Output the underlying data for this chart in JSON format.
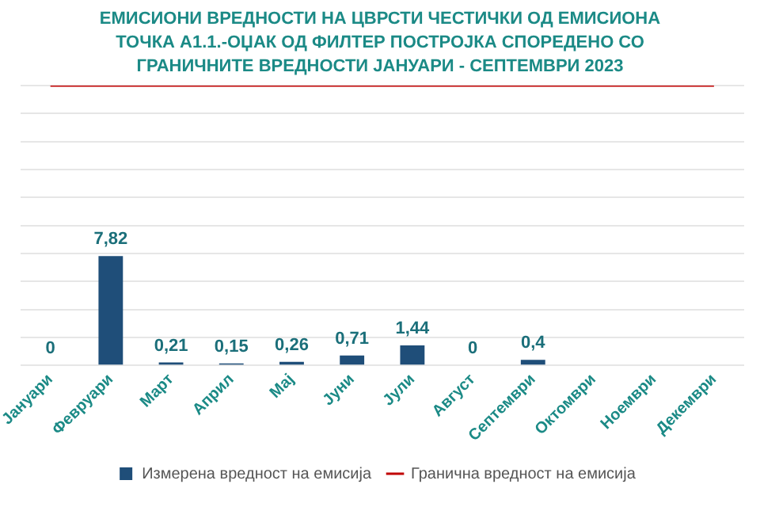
{
  "chart_data": {
    "type": "bar",
    "title": "ЕМИСИОНИ ВРЕДНОСТИ НА ЦВРСТИ ЧЕСТИЧКИ ОД ЕМИСИОНА ТОЧКА А1.1.-ОЏАК ОД ФИЛТЕР ПОСТРОЈКА СПОРЕДЕНО СО ГРАНИЧНИТЕ ВРЕДНОСТИ ЈАНУАРИ - СЕПТЕМВРИ 2023",
    "categories": [
      "Јануари",
      "Февруари",
      "Март",
      "Април",
      "Мај",
      "Јуни",
      "Јули",
      "Август",
      "Септември",
      "Октомври",
      "Ноември",
      "Декември"
    ],
    "series": [
      {
        "name": "Измерена вредност на емисија",
        "color": "#1f4e79",
        "values": [
          0,
          7.82,
          0.21,
          0.15,
          0.26,
          0.71,
          1.44,
          0,
          0.4,
          null,
          null,
          null
        ],
        "value_labels": [
          "0",
          "7,82",
          "0,21",
          "0,15",
          "0,26",
          "0,71",
          "1,44",
          "0",
          "0,4",
          null,
          null,
          null
        ]
      },
      {
        "name": "Гранична вредност на емисија",
        "type": "line",
        "color": "#c00000",
        "marker": "none",
        "values": [
          20,
          20,
          20,
          20,
          20,
          20,
          20,
          20,
          20,
          20,
          20,
          20
        ]
      }
    ],
    "ylim": [
      0,
      20
    ],
    "yticks": [
      {
        "value": 0,
        "label": null
      },
      {
        "value": 2,
        "label": null
      },
      {
        "value": 4,
        "label": null
      },
      {
        "value": 6,
        "label": null
      },
      {
        "value": 8,
        "label": null
      },
      {
        "value": 10,
        "label": null
      },
      {
        "value": 12,
        "label": null
      },
      {
        "value": 14,
        "label": null
      },
      {
        "value": 16,
        "label": null
      },
      {
        "value": 18,
        "label": null
      },
      {
        "value": 20,
        "label": null
      }
    ],
    "tick_labels": "x",
    "grid": "y",
    "legend": "bottom"
  }
}
